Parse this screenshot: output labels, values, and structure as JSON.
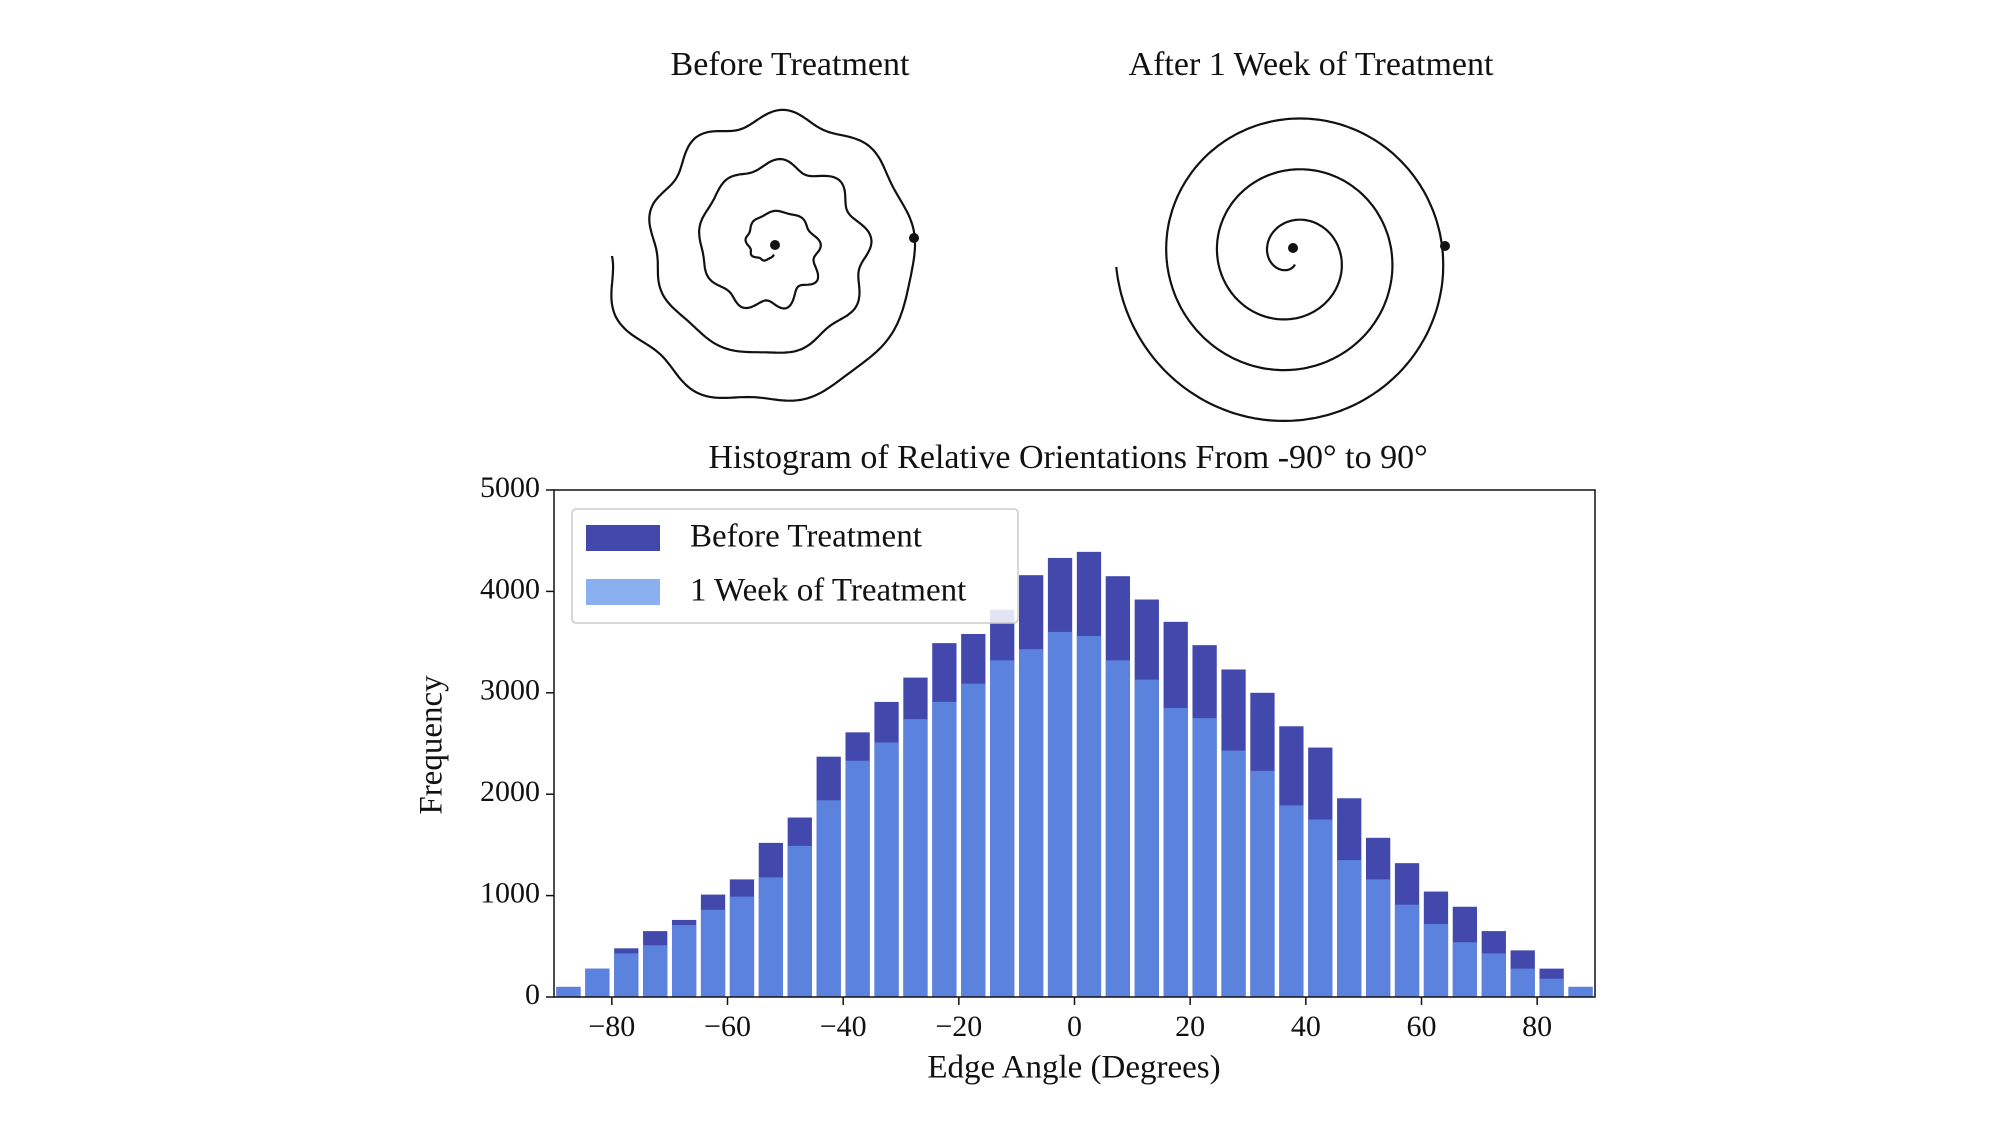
{
  "chart_data": {
    "type": "histogram",
    "panel_titles": [
      "Before Treatment",
      "After 1 Week of Treatment"
    ],
    "title": "Histogram of Relative Orientations From -90° to 90°",
    "x_label": "Edge Angle (Degrees)",
    "y_label": "Frequency",
    "bins": [
      -90,
      -85,
      -80,
      -75,
      -70,
      -65,
      -60,
      -55,
      -50,
      -45,
      -40,
      -35,
      -30,
      -25,
      -20,
      -15,
      -10,
      -5,
      0,
      5,
      10,
      15,
      20,
      25,
      30,
      35,
      40,
      45,
      50,
      55,
      60,
      65,
      70,
      75,
      80,
      85,
      90
    ],
    "series": [
      {
        "name": "Before Treatment",
        "color": "#4349ac",
        "opacity": 1,
        "values": [
          100,
          280,
          480,
          650,
          760,
          1010,
          1160,
          1520,
          1770,
          2370,
          2610,
          2910,
          3150,
          3490,
          3580,
          3820,
          4160,
          4330,
          4390,
          4150,
          3920,
          3700,
          3470,
          3230,
          3000,
          2670,
          2460,
          1960,
          1570,
          1320,
          1040,
          890,
          650,
          460,
          280,
          100
        ]
      },
      {
        "name": "1 Week of Treatment",
        "color": "#6495ed",
        "opacity": 0.75,
        "values": [
          100,
          280,
          430,
          510,
          710,
          860,
          990,
          1180,
          1490,
          1940,
          2330,
          2510,
          2740,
          2910,
          3090,
          3320,
          3430,
          3600,
          3560,
          3320,
          3130,
          2850,
          2750,
          2430,
          2230,
          1890,
          1750,
          1350,
          1160,
          910,
          720,
          540,
          430,
          280,
          180,
          100
        ]
      }
    ],
    "xlim": [
      -90,
      90
    ],
    "xticks": [
      {
        "value": -80,
        "label": "−80"
      },
      {
        "value": -60,
        "label": "−60"
      },
      {
        "value": -40,
        "label": "−40"
      },
      {
        "value": -20,
        "label": "−20"
      },
      0,
      20,
      40,
      60,
      80
    ],
    "ylim": [
      0,
      5000
    ],
    "yticks": [
      0,
      1000,
      2000,
      3000,
      4000,
      5000
    ],
    "legend": "upper left"
  }
}
